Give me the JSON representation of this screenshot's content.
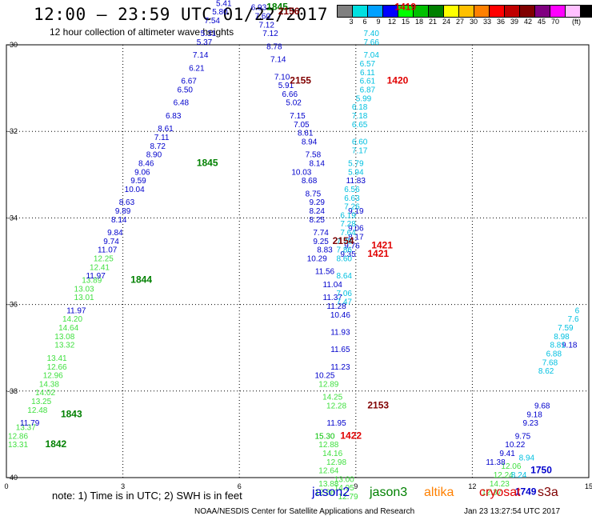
{
  "title": "12:00 – 23:59 UTC 01/22/2017",
  "subtitle": "12 hour collection of altimeter wave heights",
  "legend": {
    "colors": [
      "#808080",
      "#00e0e0",
      "#00a0ff",
      "#0000ff",
      "#00ff00",
      "#00c000",
      "#008000",
      "#ffff00",
      "#ffc000",
      "#ff8000",
      "#ff0000",
      "#c00000",
      "#800000",
      "#800080",
      "#ff00ff",
      "#ffc0ff",
      "#000000"
    ],
    "ticks": [
      "3",
      "6",
      "9",
      "12",
      "15",
      "18",
      "21",
      "24",
      "27",
      "30",
      "33",
      "36",
      "39",
      "42",
      "45",
      "70"
    ],
    "unit": "(ft)"
  },
  "note": "note: 1) Time is in UTC; 2) SWH is in feet",
  "satellites": [
    {
      "name": "jason2",
      "color": "#0000cc"
    },
    {
      "name": "jason3",
      "color": "#008000"
    },
    {
      "name": "altika",
      "color": "#ff8000"
    },
    {
      "name": "cryosat",
      "color": "#e00000"
    },
    {
      "name": "s3a",
      "color": "#800000"
    }
  ],
  "credit": "NOAA/NESDIS Center for Satellite Applications and Research",
  "timestamp": "Jan 23 13:27:54 UTC 2017",
  "chart_data": {
    "type": "scatter",
    "xlim": [
      0,
      15
    ],
    "ylim": [
      -40,
      -30
    ],
    "x_ticks": [
      0,
      3,
      6,
      9,
      12,
      15
    ],
    "y_ticks": [
      -30,
      -32,
      -34,
      -36,
      -38,
      -40
    ],
    "grid": true,
    "series": [
      {
        "name": "jason3",
        "color": "#008000",
        "points": [
          [
            0.3,
            -39.3,
            "13.31"
          ],
          [
            0.3,
            -39.1,
            "12.86"
          ],
          [
            0.5,
            -38.9,
            "13.37"
          ],
          [
            0.6,
            -38.8,
            "11.79"
          ],
          [
            0.8,
            -38.5,
            "12.48"
          ],
          [
            0.9,
            -38.3,
            "13.25"
          ],
          [
            1.0,
            -38.1,
            "14.02"
          ],
          [
            1.1,
            -37.9,
            "14.38"
          ],
          [
            1.2,
            -37.7,
            "12.96"
          ],
          [
            1.3,
            -37.5,
            "12.66"
          ],
          [
            1.3,
            -37.3,
            "13.41"
          ],
          [
            1.5,
            -37.0,
            "13.32"
          ],
          [
            1.5,
            -36.8,
            "13.08"
          ],
          [
            1.6,
            -36.6,
            "14.64"
          ],
          [
            1.7,
            -36.4,
            "14.20"
          ],
          [
            1.8,
            -36.2,
            "11.97"
          ],
          [
            2.0,
            -35.9,
            "13.01"
          ],
          [
            2.0,
            -35.7,
            "13.03"
          ],
          [
            2.2,
            -35.5,
            "13.89"
          ],
          [
            2.3,
            -35.4,
            "11.97"
          ],
          [
            2.4,
            -35.2,
            "12.41"
          ],
          [
            2.5,
            -35.0,
            "12.25"
          ],
          [
            2.6,
            -34.8,
            "11.07"
          ],
          [
            2.7,
            -34.6,
            "9.74"
          ],
          [
            2.8,
            -34.4,
            "9.84"
          ],
          [
            2.9,
            -34.1,
            "8.14"
          ],
          [
            3.0,
            -33.9,
            "9.89"
          ],
          [
            3.1,
            -33.7,
            "8.63"
          ],
          [
            3.3,
            -33.4,
            "10.04"
          ],
          [
            3.4,
            -33.2,
            "9.59"
          ],
          [
            3.5,
            -33.0,
            "9.06"
          ],
          [
            3.6,
            -32.8,
            "8.46"
          ],
          [
            3.8,
            -32.6,
            "8.90"
          ],
          [
            3.9,
            -32.4,
            "8.72"
          ],
          [
            4.0,
            -32.2,
            "7.11"
          ],
          [
            4.1,
            -32.0,
            "8.61"
          ],
          [
            4.3,
            -31.7,
            "6.83"
          ],
          [
            4.5,
            -31.4,
            "6.48"
          ],
          [
            4.6,
            -31.1,
            "6.50"
          ],
          [
            4.7,
            -30.9,
            "6.67"
          ],
          [
            4.9,
            -30.6,
            "6.21"
          ],
          [
            5.0,
            -30.3,
            "7.14"
          ],
          [
            5.1,
            -30.0,
            "5.37"
          ],
          [
            5.2,
            -29.8,
            "5.31"
          ],
          [
            5.3,
            -29.5,
            "7.54"
          ],
          [
            5.5,
            -29.3,
            "5.80"
          ],
          [
            5.6,
            -29.1,
            "5.41"
          ],
          [
            8.2,
            -37.7,
            "10.25"
          ],
          [
            8.3,
            -37.9,
            "12.89"
          ],
          [
            8.4,
            -38.2,
            "14.25"
          ],
          [
            8.5,
            -38.4,
            "12.28"
          ],
          [
            8.5,
            -38.8,
            "11.95"
          ],
          [
            8.2,
            -39.1,
            "15.30"
          ],
          [
            8.3,
            -39.3,
            "12.88"
          ],
          [
            8.4,
            -39.5,
            "14.16"
          ],
          [
            8.5,
            -39.7,
            "12.98"
          ],
          [
            8.3,
            -39.9,
            "12.64"
          ],
          [
            8.7,
            -40.1,
            "13.00"
          ],
          [
            8.3,
            -40.2,
            "13.88"
          ],
          [
            8.7,
            -40.3,
            "14.95"
          ],
          [
            8.2,
            -40.4,
            "12.88"
          ],
          [
            8.8,
            -40.5,
            "12.79"
          ],
          [
            12.5,
            -40.4,
            "12.37"
          ],
          [
            12.7,
            -40.2,
            "14.23"
          ],
          [
            12.8,
            -40.0,
            "12.24"
          ],
          [
            13.0,
            -39.8,
            "12.06"
          ]
        ]
      },
      {
        "name": "jason2",
        "color": "#0000cc",
        "points": [
          [
            6.5,
            -29.2,
            "6.93"
          ],
          [
            6.6,
            -29.4,
            "7.60"
          ],
          [
            6.7,
            -29.6,
            "7.12"
          ],
          [
            6.8,
            -29.8,
            "7.12"
          ],
          [
            6.9,
            -30.1,
            "8.78"
          ],
          [
            7.0,
            -30.4,
            "7.14"
          ],
          [
            7.1,
            -30.8,
            "7.10"
          ],
          [
            7.2,
            -31.0,
            "5.91"
          ],
          [
            7.3,
            -31.2,
            "6.66"
          ],
          [
            7.4,
            -31.4,
            "5.02"
          ],
          [
            7.5,
            -31.7,
            "7.15"
          ],
          [
            7.6,
            -31.9,
            "7.05"
          ],
          [
            7.7,
            -32.1,
            "8.61"
          ],
          [
            7.8,
            -32.3,
            "8.94"
          ],
          [
            7.9,
            -32.6,
            "7.58"
          ],
          [
            8.0,
            -32.8,
            "8.14"
          ],
          [
            7.6,
            -33.0,
            "10.03"
          ],
          [
            7.8,
            -33.2,
            "8.68"
          ],
          [
            7.9,
            -33.5,
            "8.75"
          ],
          [
            8.0,
            -33.7,
            "9.29"
          ],
          [
            8.0,
            -33.9,
            "8.24"
          ],
          [
            8.0,
            -34.1,
            "8.25"
          ],
          [
            8.1,
            -34.4,
            "7.74"
          ],
          [
            8.1,
            -34.6,
            "9.25"
          ],
          [
            8.2,
            -34.8,
            "8.83"
          ],
          [
            8.0,
            -35.0,
            "10.29"
          ],
          [
            8.2,
            -35.3,
            "11.56"
          ],
          [
            8.4,
            -35.6,
            "11.04"
          ],
          [
            8.4,
            -35.9,
            "11.37"
          ],
          [
            8.5,
            -36.1,
            "11.28"
          ],
          [
            8.6,
            -36.3,
            "10.46"
          ],
          [
            8.6,
            -36.7,
            "11.93"
          ],
          [
            8.6,
            -37.1,
            "11.65"
          ],
          [
            8.6,
            -37.5,
            "11.23"
          ],
          [
            8.8,
            -34.9,
            "9.35"
          ],
          [
            8.9,
            -34.7,
            "9.76"
          ],
          [
            9.0,
            -34.5,
            "8.17"
          ],
          [
            9.0,
            -34.3,
            "9.06"
          ],
          [
            9.0,
            -33.9,
            "9.19"
          ],
          [
            9.0,
            -33.2,
            "11.83"
          ],
          [
            12.6,
            -39.7,
            "11.38"
          ],
          [
            12.9,
            -39.5,
            "9.41"
          ],
          [
            13.1,
            -39.3,
            "10.22"
          ],
          [
            13.3,
            -39.1,
            "9.75"
          ],
          [
            13.5,
            -38.8,
            "9.23"
          ],
          [
            13.6,
            -38.6,
            "9.18"
          ],
          [
            13.8,
            -38.4,
            "9.68"
          ],
          [
            14.5,
            -37.0,
            "9.18"
          ]
        ]
      },
      {
        "name": "low",
        "color": "#00c0e0",
        "points": [
          [
            9.4,
            -29.8,
            "7.40"
          ],
          [
            9.4,
            -30.0,
            "7.66"
          ],
          [
            9.4,
            -30.3,
            "7.04"
          ],
          [
            9.3,
            -30.5,
            "6.57"
          ],
          [
            9.3,
            -30.7,
            "6.11"
          ],
          [
            9.3,
            -30.9,
            "6.61"
          ],
          [
            9.3,
            -31.1,
            "6.87"
          ],
          [
            9.2,
            -31.3,
            "5.99"
          ],
          [
            9.1,
            -31.5,
            "6.18"
          ],
          [
            9.1,
            -31.7,
            "7.18"
          ],
          [
            9.1,
            -31.9,
            "6.65"
          ],
          [
            9.1,
            -32.3,
            "6.60"
          ],
          [
            9.1,
            -32.5,
            "7.17"
          ],
          [
            9.0,
            -32.8,
            "5.79"
          ],
          [
            9.0,
            -33.0,
            "5.94"
          ],
          [
            8.9,
            -33.4,
            "6.56"
          ],
          [
            8.9,
            -33.6,
            "6.63"
          ],
          [
            8.9,
            -33.8,
            "7.26"
          ],
          [
            8.8,
            -34.0,
            "6.19"
          ],
          [
            8.8,
            -34.2,
            "7.28"
          ],
          [
            8.8,
            -34.4,
            "7.64"
          ],
          [
            8.7,
            -34.6,
            "7.78"
          ],
          [
            8.7,
            -34.8,
            "7.86"
          ],
          [
            8.7,
            -35.0,
            "8.60"
          ],
          [
            8.7,
            -35.4,
            "8.64"
          ],
          [
            8.7,
            -35.8,
            "7.06"
          ],
          [
            8.7,
            -36.0,
            "7.47"
          ],
          [
            13.2,
            -40.0,
            "8.24"
          ],
          [
            13.4,
            -39.6,
            "8.94"
          ],
          [
            13.9,
            -37.6,
            "8.62"
          ],
          [
            14.0,
            -37.4,
            "7.68"
          ],
          [
            14.1,
            -37.2,
            "6.88"
          ],
          [
            14.2,
            -37.0,
            "8.81"
          ],
          [
            14.3,
            -36.8,
            "8.98"
          ],
          [
            14.4,
            -36.6,
            "7.59"
          ],
          [
            14.6,
            -36.4,
            "7.6"
          ],
          [
            14.7,
            -36.2,
            "6"
          ]
        ]
      }
    ],
    "pass_labels": [
      {
        "text": "1845",
        "color": "#008000",
        "x": 6.7,
        "y": -29.2
      },
      {
        "text": "2156",
        "color": "#800000",
        "x": 7.0,
        "y": -29.3
      },
      {
        "text": "1845",
        "color": "#008000",
        "x": 4.9,
        "y": -32.8
      },
      {
        "text": "2155",
        "color": "#800000",
        "x": 7.3,
        "y": -30.9
      },
      {
        "text": "1419",
        "color": "#e00000",
        "x": 10.0,
        "y": -29.2
      },
      {
        "text": "1420",
        "color": "#e00000",
        "x": 9.8,
        "y": -30.9
      },
      {
        "text": "1844",
        "color": "#008000",
        "x": 3.2,
        "y": -35.5
      },
      {
        "text": "2154",
        "color": "#800000",
        "x": 8.4,
        "y": -34.6
      },
      {
        "text": "1421",
        "color": "#e00000",
        "x": 9.4,
        "y": -34.7
      },
      {
        "text": "1421",
        "color": "#e00000",
        "x": 9.3,
        "y": -34.9
      },
      {
        "text": "1843",
        "color": "#008000",
        "x": 1.4,
        "y": -38.6
      },
      {
        "text": "1842",
        "color": "#008000",
        "x": 1.0,
        "y": -39.3
      },
      {
        "text": "2153",
        "color": "#800000",
        "x": 9.3,
        "y": -38.4
      },
      {
        "text": "1422",
        "color": "#e00000",
        "x": 8.6,
        "y": -39.1
      },
      {
        "text": "1750",
        "color": "#0000cc",
        "x": 13.5,
        "y": -39.9
      },
      {
        "text": "1749",
        "color": "#0000cc",
        "x": 13.1,
        "y": -40.4
      }
    ]
  }
}
